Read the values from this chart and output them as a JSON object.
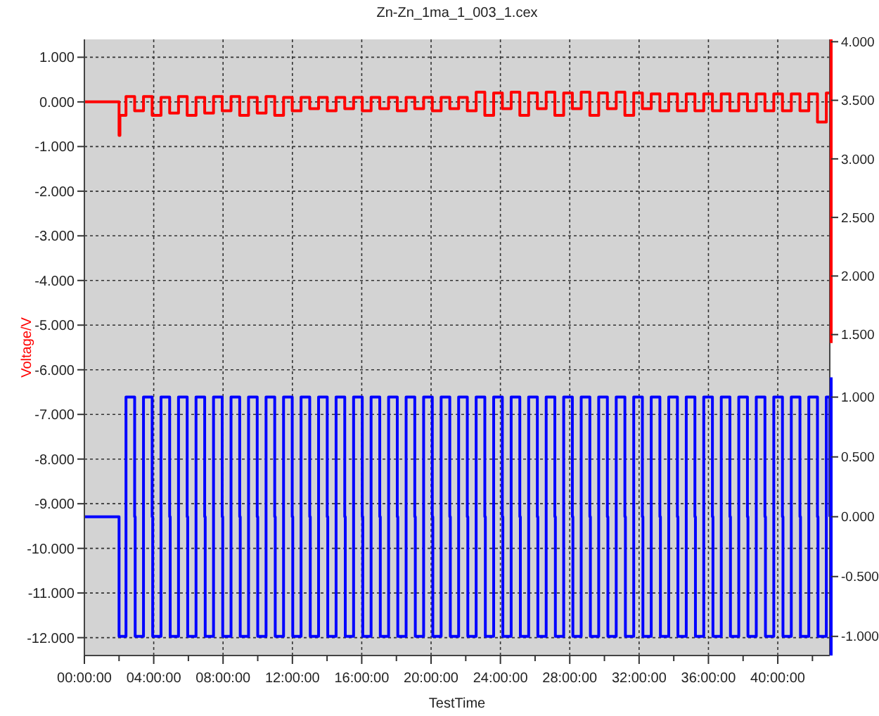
{
  "chart_data": {
    "type": "step",
    "title": "Zn-Zn_1ma_1_003_1.cex",
    "xlabel": "TestTime",
    "ylabel": "Voltage/V",
    "xlim": [
      0,
      43
    ],
    "xticks": [
      {
        "value": 0,
        "label": "00:00:00"
      },
      {
        "value": 2,
        "label": null
      },
      {
        "value": 4,
        "label": "04:00:00"
      },
      {
        "value": 6,
        "label": null
      },
      {
        "value": 8,
        "label": "08:00:00"
      },
      {
        "value": 10,
        "label": null
      },
      {
        "value": 12,
        "label": "12:00:00"
      },
      {
        "value": 14,
        "label": null
      },
      {
        "value": 16,
        "label": "16:00:00"
      },
      {
        "value": 18,
        "label": null
      },
      {
        "value": 20,
        "label": "20:00:00"
      },
      {
        "value": 22,
        "label": null
      },
      {
        "value": 24,
        "label": "24:00:00"
      },
      {
        "value": 26,
        "label": null
      },
      {
        "value": 28,
        "label": "28:00:00"
      },
      {
        "value": 30,
        "label": null
      },
      {
        "value": 32,
        "label": "32:00:00"
      },
      {
        "value": 34,
        "label": null
      },
      {
        "value": 36,
        "label": "36:00:00"
      },
      {
        "value": 38,
        "label": null
      },
      {
        "value": 40,
        "label": "40:00:00"
      },
      {
        "value": 42,
        "label": null
      }
    ],
    "ylim": [
      -12.4,
      1.4
    ],
    "yticks": [
      {
        "value": 1,
        "label": "1.000"
      },
      {
        "value": 0,
        "label": "0.000"
      },
      {
        "value": -1,
        "label": "-1.000"
      },
      {
        "value": -2,
        "label": "-2.000"
      },
      {
        "value": -3,
        "label": "-3.000"
      },
      {
        "value": -4,
        "label": "-4.000"
      },
      {
        "value": -5,
        "label": "-5.000"
      },
      {
        "value": -6,
        "label": "-6.000"
      },
      {
        "value": -7,
        "label": "-7.000"
      },
      {
        "value": -8,
        "label": "-8.000"
      },
      {
        "value": -9,
        "label": "-9.000"
      },
      {
        "value": -10,
        "label": "-10.000"
      },
      {
        "value": -11,
        "label": "-11.000"
      },
      {
        "value": -12,
        "label": "-12.000"
      }
    ],
    "y2lim": [
      -1.24,
      4.02
    ],
    "y2ticks": [
      {
        "value": 1.5,
        "label": "1.500"
      },
      {
        "value": 2,
        "label": "2.000"
      },
      {
        "value": 2.5,
        "label": "2.500"
      },
      {
        "value": 3,
        "label": "3.000"
      },
      {
        "value": 3.5,
        "label": "3.500"
      },
      {
        "value": 4,
        "label": "4.000"
      }
    ],
    "y3lim": [
      -1.16,
      3.99
    ],
    "y3ticks": [
      {
        "value": -1,
        "label": "-1.000"
      },
      {
        "value": -0.5,
        "label": "-0.500"
      },
      {
        "value": 0,
        "label": "0.000"
      },
      {
        "value": 0.5,
        "label": "0.500"
      },
      {
        "value": 1,
        "label": "1.000"
      }
    ],
    "grid": true,
    "line_style": "solid",
    "series": [
      {
        "type": "step",
        "color": "#ff0000",
        "x": [
          0,
          2.0,
          2.05,
          2.4,
          2.9,
          3.41,
          3.91,
          4.42,
          4.92,
          5.43,
          5.93,
          6.44,
          6.94,
          7.45,
          7.95,
          8.46,
          8.96,
          9.47,
          9.97,
          10.48,
          10.98,
          11.49,
          11.99,
          12.5,
          13.0,
          13.51,
          14.01,
          14.52,
          15.02,
          15.53,
          16.03,
          16.54,
          17.04,
          17.55,
          18.05,
          18.56,
          19.06,
          19.57,
          20.07,
          20.58,
          21.08,
          21.59,
          22.09,
          22.6,
          23.1,
          23.61,
          24.11,
          24.62,
          25.12,
          25.63,
          26.13,
          26.64,
          27.14,
          27.65,
          28.15,
          28.66,
          29.16,
          29.67,
          30.17,
          30.68,
          31.18,
          31.69,
          32.19,
          32.7,
          33.2,
          33.71,
          34.21,
          34.72,
          35.22,
          35.73,
          36.23,
          36.74,
          37.24,
          37.75,
          38.25,
          38.76,
          39.26,
          39.77,
          40.27,
          40.78,
          41.28,
          41.79,
          42.29,
          42.8,
          43
        ],
        "values": [
          0,
          -0.75,
          -0.3,
          0.12,
          -0.2,
          0.12,
          -0.3,
          0.1,
          -0.25,
          0.12,
          -0.3,
          0.1,
          -0.25,
          0.12,
          -0.2,
          0.12,
          -0.3,
          0.1,
          -0.25,
          0.12,
          -0.3,
          0.1,
          -0.2,
          0.1,
          -0.15,
          0.1,
          -0.2,
          0.1,
          -0.15,
          0.1,
          -0.2,
          0.1,
          -0.15,
          0.1,
          -0.2,
          0.1,
          -0.15,
          0.1,
          -0.2,
          0.1,
          -0.15,
          0.1,
          -0.2,
          0.22,
          -0.3,
          0.2,
          -0.15,
          0.22,
          -0.3,
          0.2,
          -0.15,
          0.22,
          -0.3,
          0.2,
          -0.15,
          0.22,
          -0.3,
          0.2,
          -0.15,
          0.22,
          -0.3,
          0.2,
          -0.15,
          0.18,
          -0.2,
          0.18,
          -0.2,
          0.18,
          -0.2,
          0.18,
          -0.2,
          0.18,
          -0.2,
          0.18,
          -0.2,
          0.18,
          -0.2,
          0.18,
          -0.2,
          0.18,
          -0.2,
          0.18,
          -0.45,
          0.2,
          0.2
        ]
      },
      {
        "type": "step",
        "color": "#0000ff",
        "axis": "y3",
        "x": [
          0,
          2.0,
          2.4,
          2.9,
          2.93,
          3.41,
          3.91,
          3.94,
          4.42,
          4.92,
          4.95,
          5.43,
          5.93,
          5.96,
          6.44,
          6.94,
          6.97,
          7.45,
          7.95,
          7.98,
          8.46,
          8.96,
          8.99,
          9.47,
          9.97,
          10.0,
          10.48,
          10.98,
          11.01,
          11.49,
          11.99,
          12.02,
          12.5,
          13.0,
          13.03,
          13.51,
          14.01,
          14.04,
          14.52,
          15.02,
          15.05,
          15.53,
          16.03,
          16.06,
          16.54,
          17.04,
          17.07,
          17.55,
          18.05,
          18.08,
          18.56,
          19.06,
          19.09,
          19.57,
          20.07,
          20.1,
          20.58,
          21.08,
          21.11,
          21.59,
          22.09,
          22.12,
          22.6,
          23.1,
          23.13,
          23.61,
          24.11,
          24.14,
          24.62,
          25.12,
          25.15,
          25.63,
          26.13,
          26.16,
          26.64,
          27.14,
          27.17,
          27.65,
          28.15,
          28.18,
          28.66,
          29.16,
          29.19,
          29.67,
          30.17,
          30.2,
          30.68,
          31.18,
          31.21,
          31.69,
          32.19,
          32.22,
          32.7,
          33.2,
          33.23,
          33.71,
          34.21,
          34.24,
          34.72,
          35.22,
          35.25,
          35.73,
          36.23,
          36.26,
          36.74,
          37.24,
          37.27,
          37.75,
          38.25,
          38.28,
          38.76,
          39.26,
          39.29,
          39.77,
          40.27,
          40.3,
          40.78,
          41.28,
          41.31,
          41.79,
          42.29,
          42.32,
          42.8,
          43
        ],
        "values": [
          0,
          -1,
          1,
          0,
          -1,
          1,
          0,
          -1,
          1,
          0,
          -1,
          1,
          0,
          -1,
          1,
          0,
          -1,
          1,
          0,
          -1,
          1,
          0,
          -1,
          1,
          0,
          -1,
          1,
          0,
          -1,
          1,
          0,
          -1,
          1,
          0,
          -1,
          1,
          0,
          -1,
          1,
          0,
          -1,
          1,
          0,
          -1,
          1,
          0,
          -1,
          1,
          0,
          -1,
          1,
          0,
          -1,
          1,
          0,
          -1,
          1,
          0,
          -1,
          1,
          0,
          -1,
          1,
          0,
          -1,
          1,
          0,
          -1,
          1,
          0,
          -1,
          1,
          0,
          -1,
          1,
          0,
          -1,
          1,
          0,
          -1,
          1,
          0,
          -1,
          1,
          0,
          -1,
          1,
          0,
          -1,
          1,
          0,
          -1,
          1,
          0,
          -1,
          1,
          0,
          -1,
          1,
          0,
          -1,
          1,
          0,
          -1,
          1,
          0,
          -1,
          1,
          0,
          -1,
          1,
          0,
          -1,
          1,
          0,
          -1,
          1,
          0,
          -1,
          1,
          0,
          -1,
          1,
          0
        ]
      }
    ]
  }
}
